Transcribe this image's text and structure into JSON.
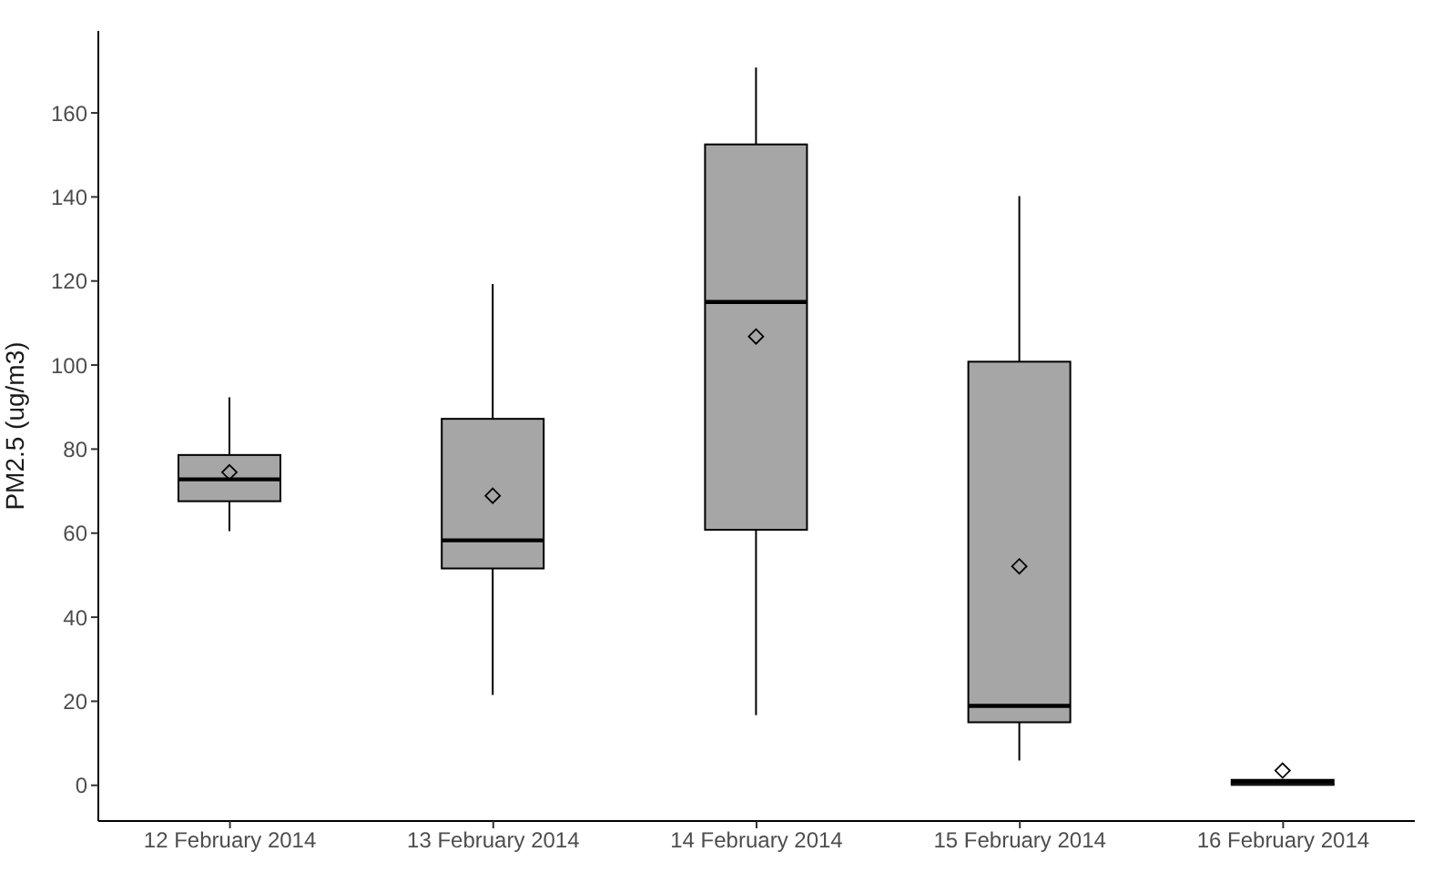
{
  "chart_data": {
    "type": "box",
    "ylabel": "PM2.5 (ug/m3)",
    "categories": [
      "12 February 2014",
      "13 February 2014",
      "14 February 2014",
      "15 February 2014",
      "16 February 2014"
    ],
    "color": "#a6a6a6",
    "grid": false,
    "ylim": [
      -8.5,
      179.5
    ],
    "yticks": [
      0,
      20,
      40,
      60,
      80,
      100,
      120,
      140,
      160
    ],
    "boxes": [
      {
        "low": 60.5,
        "q1": 67.6,
        "median": 72.8,
        "q3": 78.6,
        "high": 92.3,
        "mean": 74.5
      },
      {
        "low": 21.5,
        "q1": 51.6,
        "median": 58.3,
        "q3": 87.2,
        "high": 119.3,
        "mean": 68.9
      },
      {
        "low": 16.7,
        "q1": 60.8,
        "median": 115,
        "q3": 152.5,
        "high": 170.8,
        "mean": 106.8
      },
      {
        "low": 5.9,
        "q1": 15,
        "median": 18.9,
        "q3": 100.8,
        "high": 140.2,
        "mean": 52.1
      },
      {
        "low": 0,
        "q1": 0.1,
        "median": 0.8,
        "q3": 1.3,
        "high": 1.3,
        "mean": 3.5
      }
    ]
  }
}
